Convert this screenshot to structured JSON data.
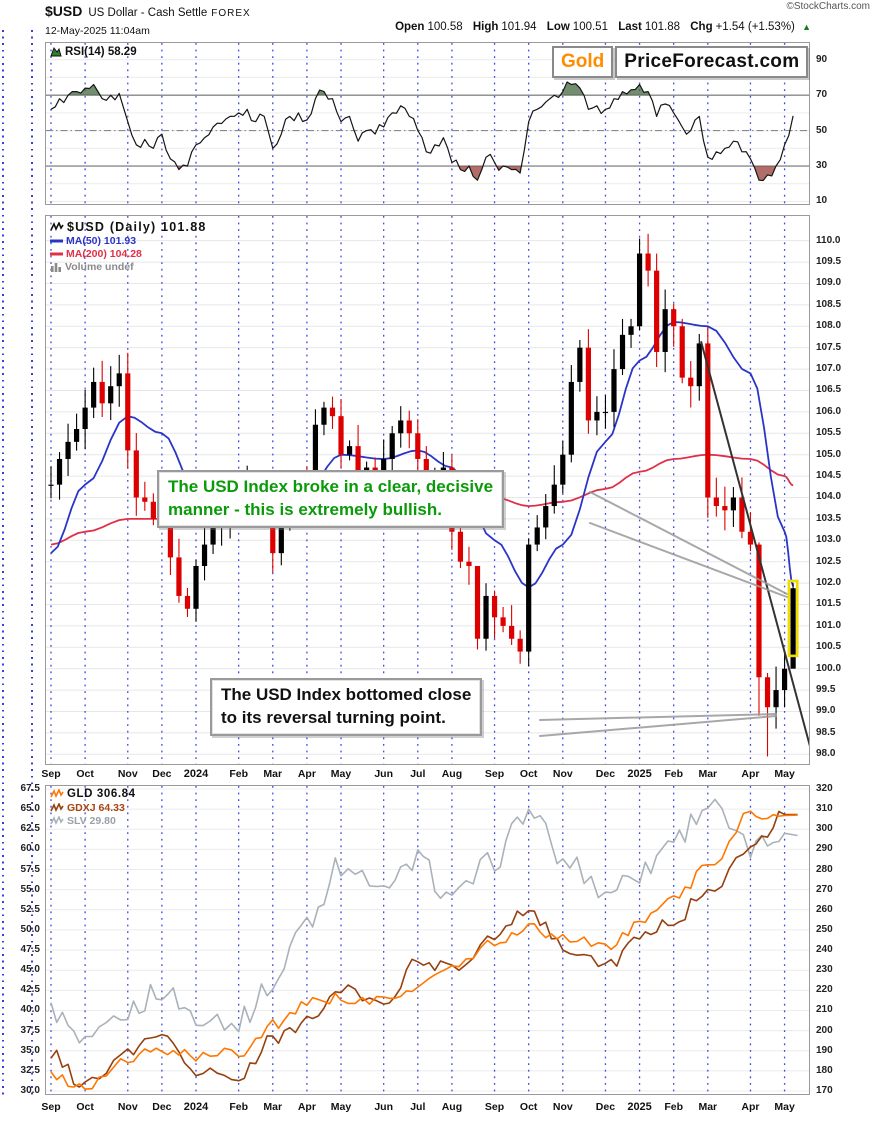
{
  "header": {
    "symbol": "$USD",
    "description": "US Dollar - Cash Settle",
    "exchange": "FOREX",
    "copyright": "©StockCharts.com",
    "datetime": "12-May-2025 11:04am",
    "quote": {
      "open": {
        "label": "Open",
        "value": "100.58"
      },
      "high": {
        "label": "High",
        "value": "101.94"
      },
      "low": {
        "label": "Low",
        "value": "100.51"
      },
      "last": {
        "label": "Last",
        "value": "101.88"
      },
      "chg": {
        "label": "Chg",
        "value": "+1.54 (+1.53%)"
      },
      "direction": "up",
      "up_arrow": "▲"
    }
  },
  "logo": {
    "part1": "Gold",
    "part2": "PriceForecast.com"
  },
  "colors": {
    "accent_orange": "#ff8c00",
    "up_green": "#1a7a1a",
    "grid_blue": "#2a35dd",
    "candle_up": "#000000",
    "candle_down": "#dd0000",
    "ma50": "#2a35c8",
    "ma200": "#e03048",
    "trendline": "#333333",
    "highlight_yellow": "#f0dc00",
    "annotation_green": "#0a9a0a",
    "annotation_black": "#111111",
    "gld_line": "#ff7700",
    "gdxj_line": "#96400f",
    "slv_line": "#a9b2ba",
    "gdxj_text": "#aa4411",
    "slv_text": "#99a1a9",
    "rsi_icon_green": "#2e7d32"
  },
  "rsi_panel": {
    "legend": "RSI(14) 58.29"
  },
  "main_panel": {
    "legend": [
      {
        "text": "$USD (Daily) 101.88",
        "color": "#111111"
      },
      {
        "text": "MA(50) 101.93",
        "color": "#2a35c8"
      },
      {
        "text": "MA(200) 104.28",
        "color": "#e03048"
      },
      {
        "text": "Volume undef",
        "color": "#8a8a8a"
      }
    ]
  },
  "bottom_panel": {
    "legend": [
      {
        "text": "GLD 306.84",
        "color": "#111111",
        "icon_color": "#ff7700"
      },
      {
        "text": "GDXJ 64.33",
        "color": "#aa4411",
        "icon_color": "#96400f"
      },
      {
        "text": "SLV 29.80",
        "color": "#99a1a9",
        "icon_color": "#a9b2ba"
      }
    ]
  },
  "annotations": {
    "bullish_box": {
      "line1": "The USD Index broke in a clear, decisive",
      "line2": "manner - this is extremely bullish."
    },
    "bottom_box": {
      "line1": "The USD Index bottomed close",
      "line2": "to its reversal turning point."
    }
  },
  "chart_data": [
    {
      "id": "rsi",
      "type": "line",
      "title": "RSI(14)",
      "last_value": 58.29,
      "ylim": [
        8,
        100
      ],
      "yticks": [
        90,
        70,
        50,
        30,
        10
      ],
      "overbought": 70,
      "oversold": 30,
      "midline": 50,
      "weekly_values": [
        62,
        68,
        70,
        72,
        74,
        76,
        68,
        70,
        71,
        55,
        42,
        45,
        40,
        48,
        34,
        28,
        30,
        42,
        46,
        52,
        54,
        58,
        60,
        62,
        55,
        58,
        40,
        48,
        58,
        60,
        56,
        68,
        72,
        68,
        55,
        58,
        44,
        50,
        48,
        52,
        60,
        64,
        58,
        50,
        38,
        42,
        46,
        32,
        28,
        30,
        22,
        35,
        32,
        30,
        28,
        26,
        55,
        62,
        66,
        70,
        72,
        76,
        74,
        62,
        64,
        62,
        68,
        72,
        73,
        76,
        72,
        58,
        65,
        60,
        52,
        50,
        58,
        35,
        38,
        40,
        44,
        38,
        34,
        22,
        25,
        30,
        42,
        58.29
      ]
    },
    {
      "id": "usd_price",
      "type": "candlestick",
      "title": "$USD (Daily)",
      "last": 101.88,
      "ylim": [
        98.0,
        110.0
      ],
      "ytick_step": 0.5,
      "categories": [
        "Sep",
        "Oct",
        "Nov",
        "Dec",
        "2024",
        "Feb",
        "Mar",
        "Apr",
        "May",
        "Jun",
        "Jul",
        "Aug",
        "Sep",
        "Oct",
        "Nov",
        "Dec",
        "2025",
        "Feb",
        "Mar",
        "Apr",
        "May"
      ],
      "bold_category_indices": [
        4,
        16
      ],
      "week_of_month_start": [
        0,
        4,
        9,
        13,
        17,
        22,
        26,
        30,
        34,
        39,
        43,
        47,
        52,
        56,
        60,
        65,
        69,
        73,
        77,
        82,
        86
      ],
      "weekly_close": [
        104.3,
        104.9,
        105.3,
        105.6,
        106.1,
        106.7,
        106.2,
        106.6,
        106.9,
        105.1,
        104.0,
        103.9,
        103.5,
        104.0,
        102.6,
        101.7,
        101.4,
        102.4,
        102.9,
        103.3,
        103.5,
        103.9,
        104.1,
        104.3,
        103.9,
        104.2,
        102.7,
        103.4,
        104.4,
        104.5,
        104.3,
        105.7,
        106.1,
        105.9,
        105.0,
        105.2,
        104.4,
        104.7,
        104.6,
        104.9,
        105.5,
        105.8,
        105.5,
        104.9,
        104.1,
        104.3,
        104.7,
        103.2,
        102.5,
        102.4,
        100.7,
        101.7,
        101.2,
        101.0,
        100.7,
        100.4,
        102.9,
        103.3,
        103.8,
        104.3,
        105.0,
        106.7,
        107.5,
        105.8,
        106.0,
        106.0,
        107.0,
        107.8,
        108.0,
        109.7,
        109.3,
        107.4,
        108.4,
        108.0,
        106.8,
        106.6,
        107.6,
        104.0,
        103.8,
        103.7,
        104.0,
        103.2,
        102.9,
        99.8,
        99.1,
        99.5,
        100.0,
        101.88
      ],
      "wick_overrides": {
        "50": [
          101.6,
          100.45
        ],
        "69": [
          110.05,
          107.9
        ],
        "83": [
          102.95,
          98.9
        ],
        "84": [
          99.9,
          97.95
        ],
        "85": [
          100.05,
          98.6
        ],
        "87": [
          102.0,
          100.35
        ]
      },
      "ma50": {
        "period": 50,
        "last": 101.93,
        "monthly": [
          102.7,
          104.3,
          105.9,
          105.5,
          104.2,
          103.6,
          103.7,
          104.2,
          105.0,
          104.9,
          105.1,
          104.7,
          103.0,
          101.9,
          102.9,
          105.3,
          107.2,
          108.1,
          108.0,
          106.9,
          103.2
        ],
        "end": 101.93
      },
      "ma200": {
        "period": 200,
        "last": 104.28,
        "monthly": [
          102.9,
          103.2,
          103.5,
          103.5,
          103.4,
          103.4,
          103.5,
          103.8,
          104.2,
          104.4,
          104.4,
          104.3,
          104.0,
          103.8,
          103.9,
          104.2,
          104.6,
          104.9,
          105.0,
          104.9,
          104.5
        ],
        "end": 104.28
      },
      "volume": "undef",
      "trendline": {
        "week_from": 76.2,
        "price_from": 107.65,
        "week_to": 89.3,
        "price_to": 97.95
      },
      "breakout_highlight": {
        "week": 87,
        "price_top": 102.05,
        "price_bottom": 100.3
      }
    },
    {
      "id": "metals",
      "type": "line",
      "ylim_right": [
        170,
        320
      ],
      "ytick_step_right": 10,
      "ylim_left": [
        30,
        67.5
      ],
      "ytick_step_left": 2.5,
      "series": [
        {
          "name": "SLV",
          "last": 29.8,
          "axis": "right",
          "scale_factor": 10,
          "color": "#a9b2ba",
          "amp": 6,
          "monthly": [
            21.0,
            19.2,
            21.0,
            22.0,
            20.8,
            20.5,
            22.3,
            25.5,
            28.2,
            26.8,
            28.5,
            26.5,
            28.5,
            31.0,
            28.5,
            27.0,
            27.8,
            29.5,
            31.2,
            29.0,
            29.8
          ]
        },
        {
          "name": "GDXJ",
          "last": 64.33,
          "axis": "left",
          "color": "#96400f",
          "amp": 3.5,
          "monthly": [
            34.5,
            30.7,
            34.5,
            37.5,
            32.5,
            31.5,
            36.5,
            38.5,
            42.5,
            41.0,
            46.0,
            45.5,
            49.0,
            52.5,
            48.0,
            45.5,
            49.0,
            51.0,
            55.0,
            60.0,
            64.33
          ]
        },
        {
          "name": "GLD",
          "last": 306.84,
          "axis": "right",
          "color": "#ff7700",
          "amp": 3,
          "monthly": [
            177,
            171,
            186,
            190,
            187,
            189,
            203,
            214,
            216,
            214,
            222,
            231,
            243,
            251,
            246,
            242,
            252,
            267,
            280,
            308,
            306.84
          ]
        }
      ]
    }
  ]
}
